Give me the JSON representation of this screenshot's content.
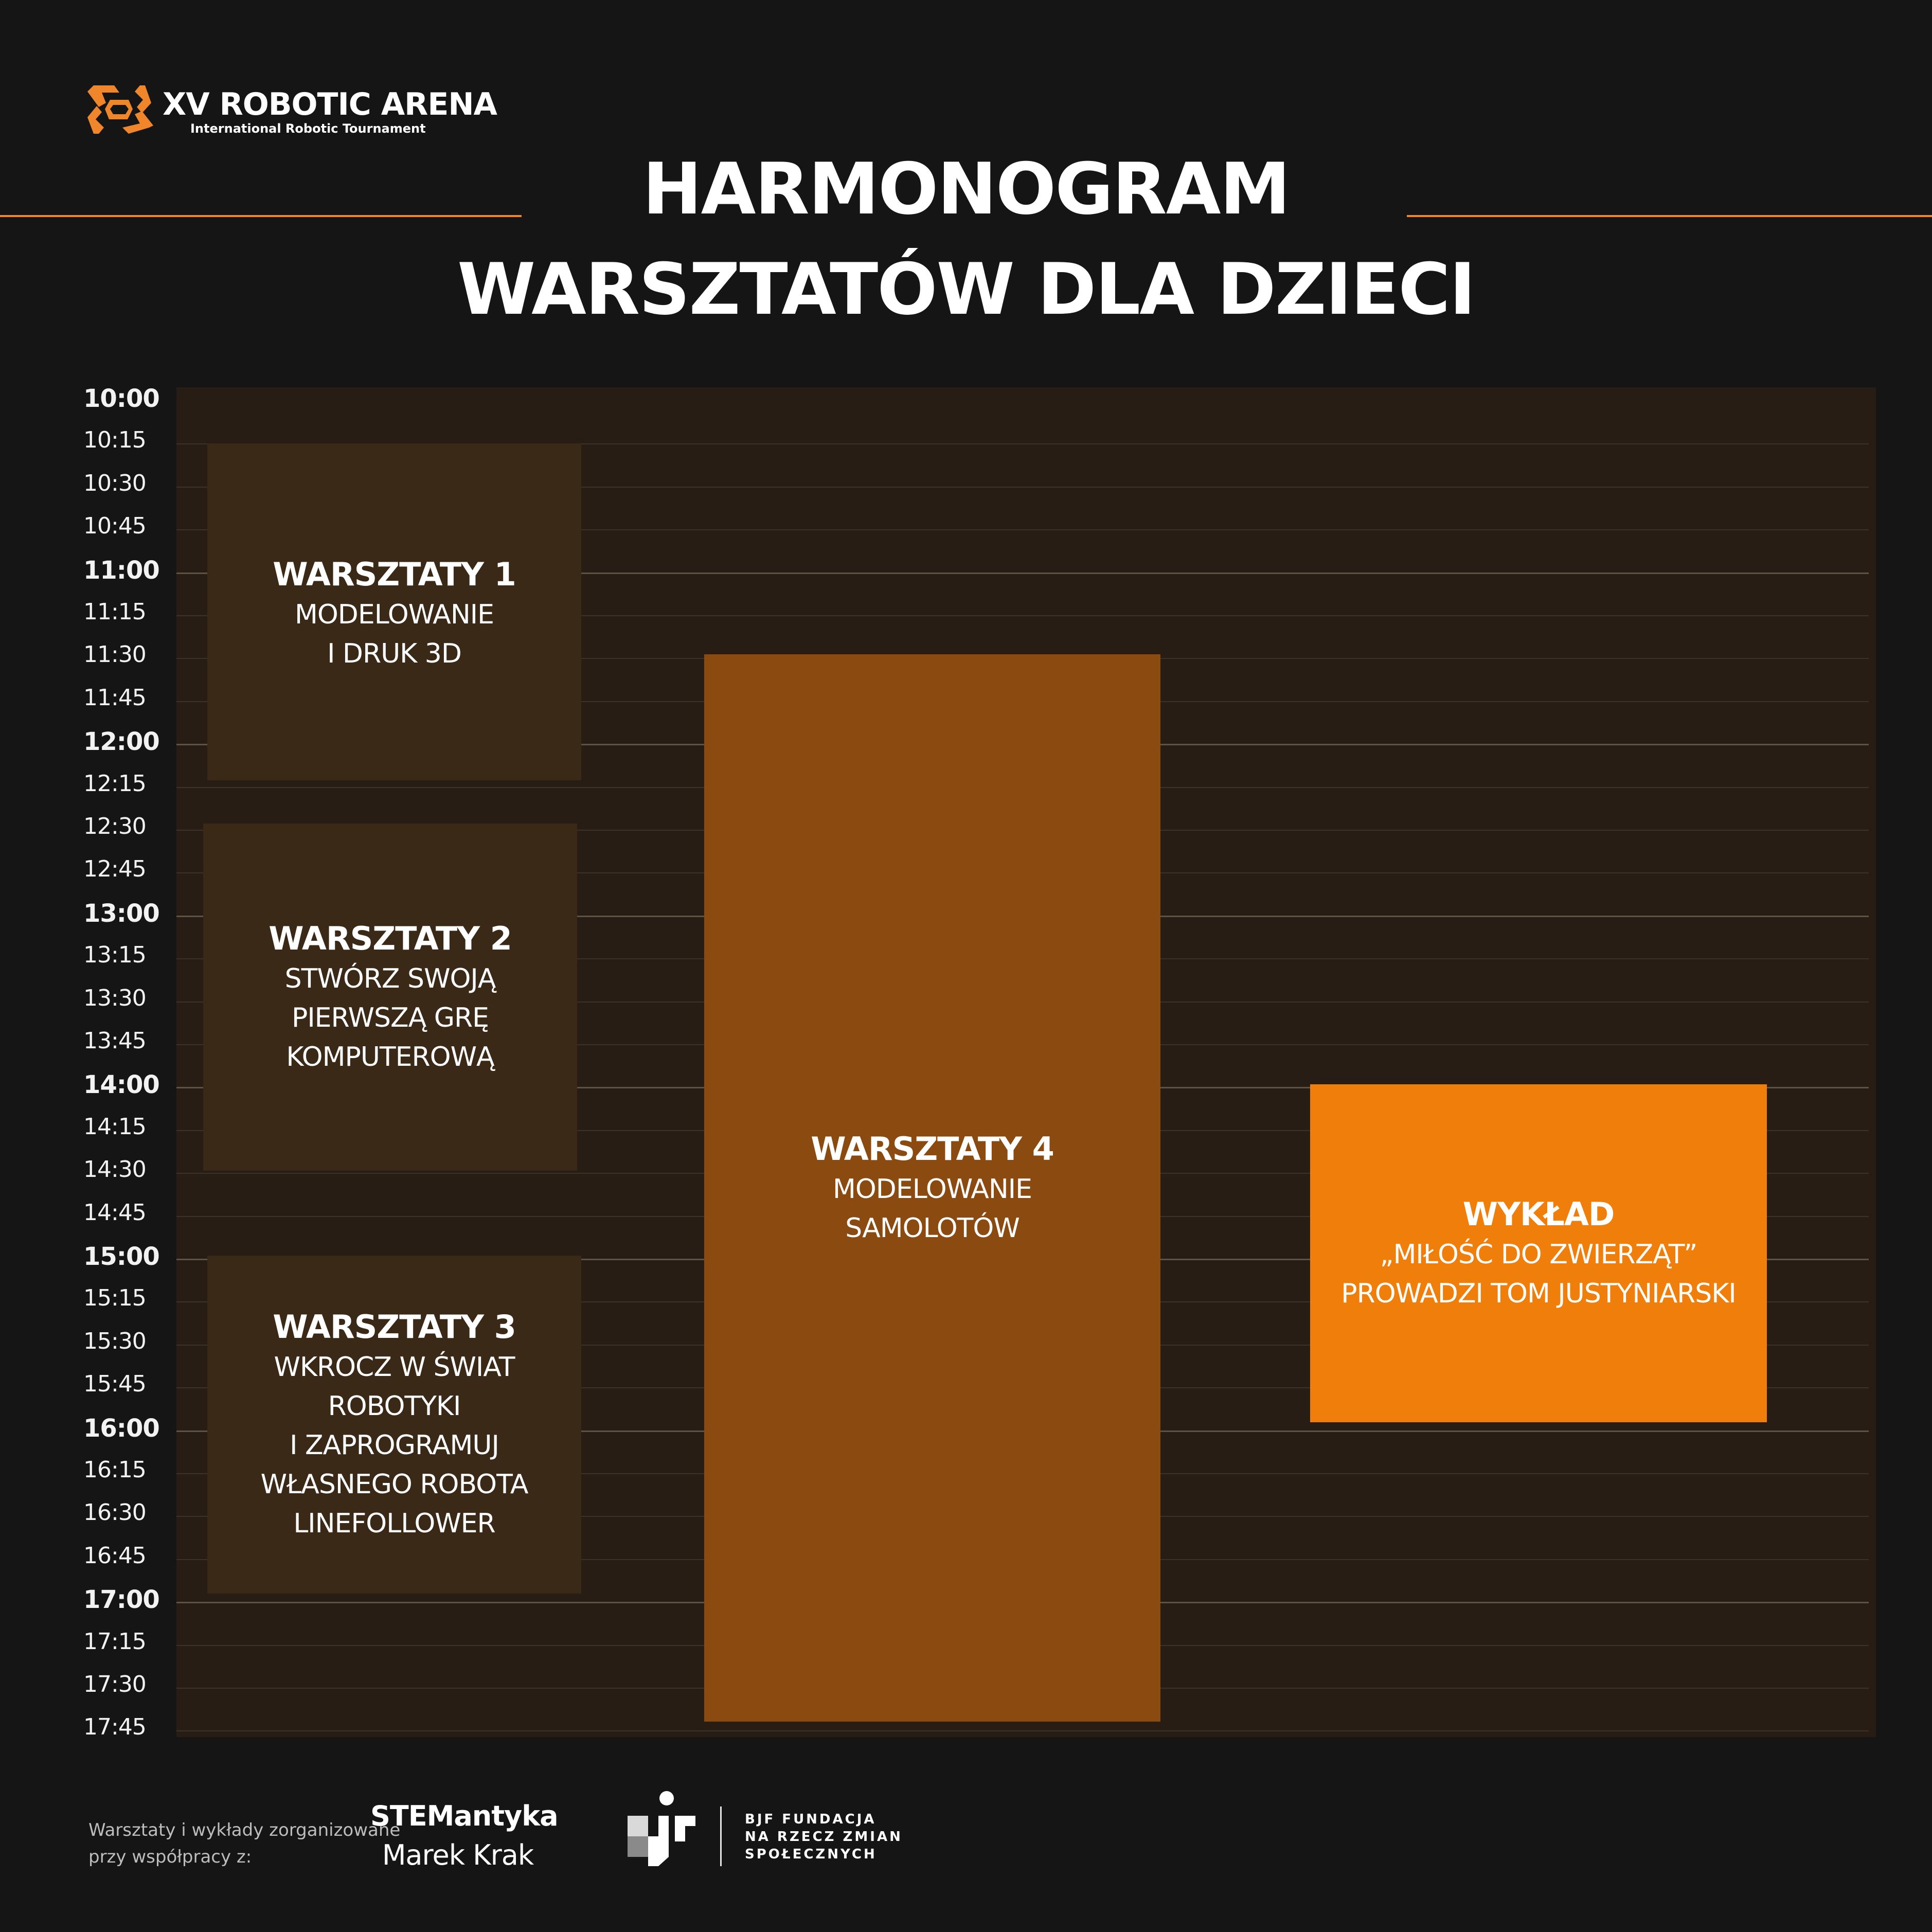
{
  "brand": {
    "name": "XV ROBOTIC ARENA",
    "tagline": "International Robotic Tournament",
    "accent_color": "#f0862c"
  },
  "title_lines": [
    "HARMONOGRAM",
    "WARSZTATÓW DLA DZIECI"
  ],
  "time_ticks": [
    {
      "label": "10:00",
      "major": true
    },
    {
      "label": "10:15",
      "major": false
    },
    {
      "label": "10:30",
      "major": false
    },
    {
      "label": "10:45",
      "major": false
    },
    {
      "label": "11:00",
      "major": true
    },
    {
      "label": "11:15",
      "major": false
    },
    {
      "label": "11:30",
      "major": false
    },
    {
      "label": "11:45",
      "major": false
    },
    {
      "label": "12:00",
      "major": true
    },
    {
      "label": "12:15",
      "major": false
    },
    {
      "label": "12:30",
      "major": false
    },
    {
      "label": "12:45",
      "major": false
    },
    {
      "label": "13:00",
      "major": true
    },
    {
      "label": "13:15",
      "major": false
    },
    {
      "label": "13:30",
      "major": false
    },
    {
      "label": "13:45",
      "major": false
    },
    {
      "label": "14:00",
      "major": true
    },
    {
      "label": "14:15",
      "major": false
    },
    {
      "label": "14:30",
      "major": false
    },
    {
      "label": "14:45",
      "major": false
    },
    {
      "label": "15:00",
      "major": true
    },
    {
      "label": "15:15",
      "major": false
    },
    {
      "label": "15:30",
      "major": false
    },
    {
      "label": "15:45",
      "major": false
    },
    {
      "label": "16:00",
      "major": true
    },
    {
      "label": "16:15",
      "major": false
    },
    {
      "label": "16:30",
      "major": false
    },
    {
      "label": "16:45",
      "major": false
    },
    {
      "label": "17:00",
      "major": true
    },
    {
      "label": "17:15",
      "major": false
    },
    {
      "label": "17:30",
      "major": false
    },
    {
      "label": "17:45",
      "major": false
    }
  ],
  "events": {
    "w1": {
      "title": "WARSZTATY 1",
      "lines": [
        "MODELOWANIE",
        "I DRUK 3D"
      ],
      "start": "10:15",
      "end": "12:15",
      "color": "#3b2917"
    },
    "w2": {
      "title": "WARSZTATY 2",
      "lines": [
        "STWÓRZ SWOJĄ",
        "PIERWSZĄ GRĘ",
        "KOMPUTEROWĄ"
      ],
      "start": "12:30",
      "end": "14:30",
      "color": "#3b2917"
    },
    "w3": {
      "title": "WARSZTATY 3",
      "lines": [
        "WKROCZ W ŚWIAT ROBOTYKI",
        "I ZAPROGRAMUJ",
        "WŁASNEGO ROBOTA",
        "LINEFOLLOWER"
      ],
      "start": "15:00",
      "end": "17:00",
      "color": "#3b2917"
    },
    "w4": {
      "title": "WARSZTATY 4",
      "lines": [
        "MODELOWANIE",
        "SAMOLOTÓW"
      ],
      "start": "11:30",
      "end": "17:45",
      "color": "#8b4a0f"
    },
    "lecture": {
      "title": "WYKŁAD",
      "lines": [
        "„MIŁOŚĆ DO ZWIERZĄT”",
        "PROWADZI TOM JUSTYNIARSKI"
      ],
      "start": "14:00",
      "end": "16:00",
      "color": "#f07e0a"
    }
  },
  "footer": {
    "note_lines": [
      "Warsztaty i wykłady zorganizowane",
      "przy współpracy z:"
    ],
    "partner1": {
      "name": "STEMantyka",
      "person": "Marek Krak"
    },
    "partner2": {
      "lines": [
        "BJF  FUNDACJA",
        "NA RZECZ ZMIAN",
        "SPOŁECZNYCH"
      ]
    }
  }
}
